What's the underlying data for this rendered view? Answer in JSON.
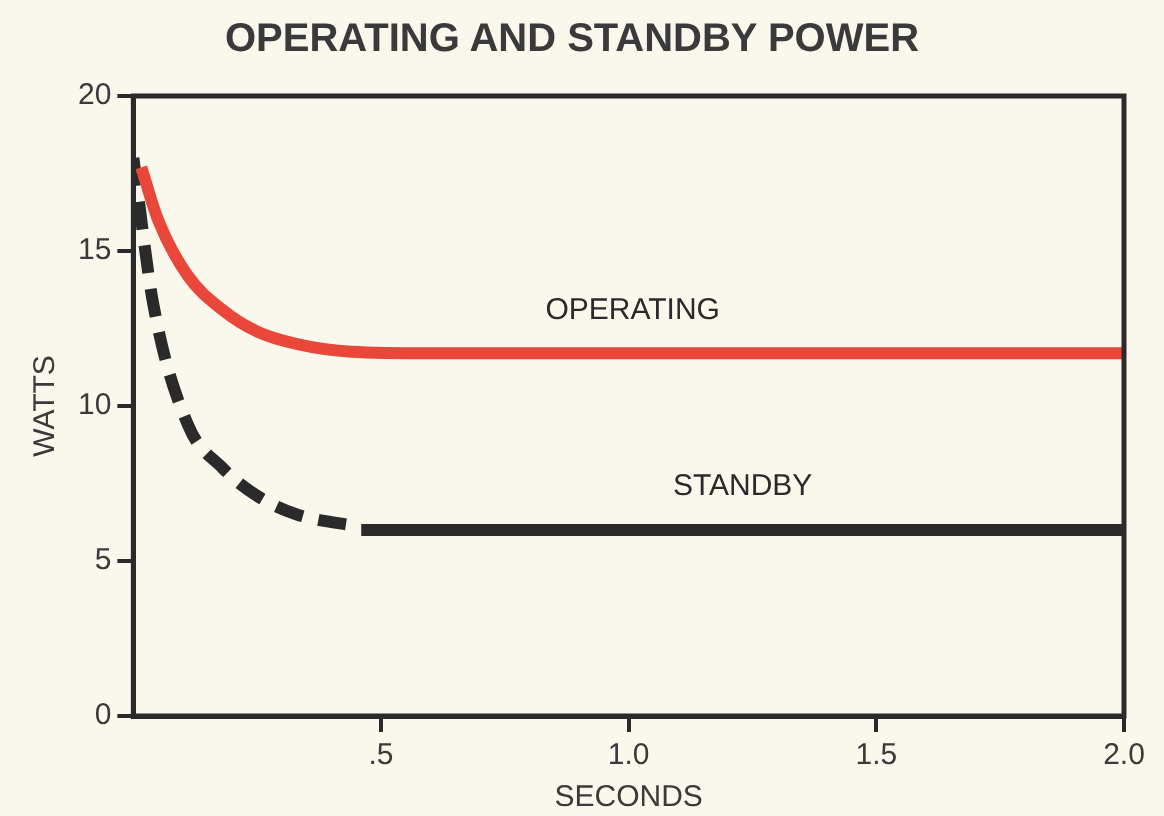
{
  "chart_data": {
    "type": "line",
    "title": "OPERATING AND STANDBY POWER",
    "xlabel": "SECONDS",
    "ylabel": "WATTS",
    "xlim": [
      0,
      2
    ],
    "xticks": [
      {
        "value": 0.5,
        "label": ".5"
      },
      {
        "value": 1,
        "label": "1.0"
      },
      {
        "value": 1.5,
        "label": "1.5"
      },
      {
        "value": 2,
        "label": "2.0"
      }
    ],
    "ylim": [
      0,
      20
    ],
    "yticks": [
      0,
      5,
      10,
      15,
      20
    ],
    "grid": false,
    "legend": false,
    "marker": "none",
    "series": [
      {
        "name": "OPERATING",
        "color": "#e8473a",
        "line_style": "solid",
        "x": [
          0.016,
          0.05,
          0.11,
          0.18,
          0.25,
          0.33,
          0.44,
          0.6,
          1.0,
          1.5,
          2.0
        ],
        "values": [
          17.7,
          16.0,
          14.2,
          13.1,
          12.4,
          12.0,
          11.75,
          11.7,
          11.7,
          11.7,
          11.7
        ]
      },
      {
        "color": "#2a2a2a",
        "line_style": "dashed",
        "x": [
          0.0,
          0.04,
          0.11,
          0.18,
          0.25,
          0.33,
          0.46
        ],
        "values": [
          18.0,
          13.3,
          9.4,
          8.0,
          7.1,
          6.5,
          6.1
        ]
      },
      {
        "name": "STANDBY",
        "color": "#2a2a2a",
        "line_style": "solid",
        "x": [
          0.46,
          1.0,
          1.5,
          2.0
        ],
        "values": [
          6.0,
          6.0,
          6.0,
          6.0
        ]
      }
    ]
  }
}
